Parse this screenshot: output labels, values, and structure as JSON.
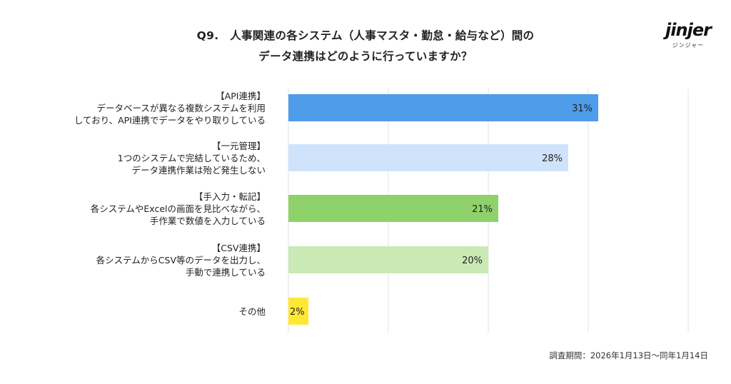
{
  "title": {
    "line1": "Q9.　人事関連の各システム（人事マスタ・勤怠・給与など）間の",
    "line2": "データ連携はどのように行っていますか？"
  },
  "logo": {
    "word": "jinjer",
    "sub": "ジンジャー"
  },
  "footer": {
    "period": "調査期間：2026年1月13日〜同年1月14日"
  },
  "chart_data": {
    "type": "bar",
    "orientation": "horizontal",
    "xlim": [
      0,
      40
    ],
    "grid": true,
    "categories": [
      [
        "【API連携】",
        "データベースが異なる複数システムを利用",
        "しており、API連携でデータをやり取りしている"
      ],
      [
        "【一元管理】",
        "1つのシステムで完結しているため、",
        "データ連携作業は殆ど発生しない"
      ],
      [
        "【手入力・転記】",
        "各システムやExcelの画面を見比べながら、",
        "手作業で数値を入力している"
      ],
      [
        "【CSV連携】",
        "各システムからCSV等のデータを出力し、",
        "手動で連携している"
      ],
      [
        "その他"
      ]
    ],
    "values": [
      31,
      28,
      21,
      20,
      2
    ],
    "value_labels": [
      "31%",
      "28%",
      "21%",
      "20%",
      "2%"
    ],
    "colors": [
      "#4e9cea",
      "#cfe4fa",
      "#8fd16a",
      "#c9eab5",
      "#ffe833"
    ]
  }
}
